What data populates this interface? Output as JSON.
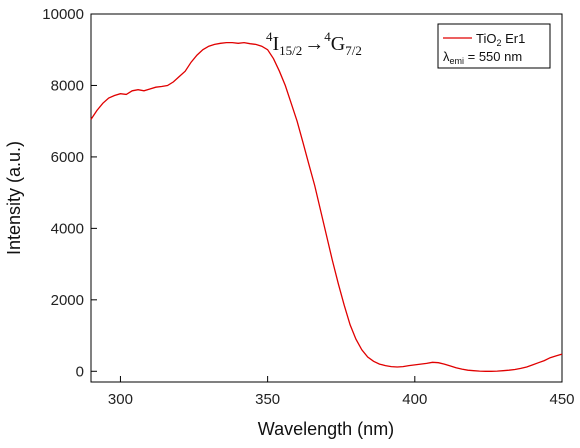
{
  "chart_data": {
    "type": "line",
    "xlabel": "Wavelength (nm)",
    "ylabel": "Intensity (a.u.)",
    "xlim": [
      290,
      450
    ],
    "ylim": [
      -300,
      10000
    ],
    "x_ticks": [
      300,
      350,
      400,
      450
    ],
    "y_ticks": [
      0,
      2000,
      4000,
      6000,
      8000,
      10000
    ],
    "grid": false,
    "legend_position": "top-right",
    "legend": {
      "entry_main": "TiO",
      "entry_sub": "2",
      "entry_rest": " Er1",
      "note_main": "λ",
      "note_sub": "emi",
      "note_rest": " = 550 nm"
    },
    "annotation": {
      "sup1": "4",
      "main1": "I",
      "sub1": "15/2",
      "arrow": "→",
      "sup2": "4",
      "main2": "G",
      "sub2": "7/2"
    },
    "colors": {
      "line": "#e00000",
      "axis": "#000000"
    },
    "series": [
      {
        "name": "TiO2 Er1",
        "x": [
          290,
          292,
          294,
          296,
          298,
          300,
          302,
          304,
          306,
          308,
          310,
          312,
          314,
          316,
          318,
          320,
          322,
          324,
          326,
          328,
          330,
          332,
          334,
          336,
          338,
          340,
          342,
          344,
          346,
          348,
          350,
          352,
          354,
          356,
          358,
          360,
          362,
          364,
          366,
          368,
          370,
          372,
          374,
          376,
          378,
          380,
          382,
          384,
          386,
          388,
          390,
          392,
          394,
          396,
          398,
          400,
          402,
          404,
          406,
          408,
          410,
          412,
          414,
          416,
          418,
          420,
          422,
          424,
          426,
          428,
          430,
          432,
          434,
          436,
          438,
          440,
          442,
          444,
          446,
          448,
          450
        ],
        "y": [
          7050,
          7300,
          7500,
          7650,
          7720,
          7770,
          7750,
          7850,
          7880,
          7850,
          7900,
          7950,
          7970,
          8000,
          8100,
          8250,
          8400,
          8650,
          8850,
          9000,
          9100,
          9150,
          9180,
          9200,
          9200,
          9180,
          9200,
          9170,
          9150,
          9100,
          9000,
          8750,
          8400,
          8000,
          7500,
          7000,
          6400,
          5800,
          5200,
          4500,
          3800,
          3100,
          2450,
          1850,
          1300,
          900,
          600,
          400,
          280,
          200,
          160,
          130,
          120,
          130,
          160,
          180,
          200,
          220,
          250,
          240,
          200,
          150,
          100,
          60,
          30,
          15,
          5,
          0,
          0,
          5,
          15,
          30,
          50,
          80,
          120,
          180,
          240,
          300,
          380,
          430,
          480
        ]
      }
    ]
  }
}
